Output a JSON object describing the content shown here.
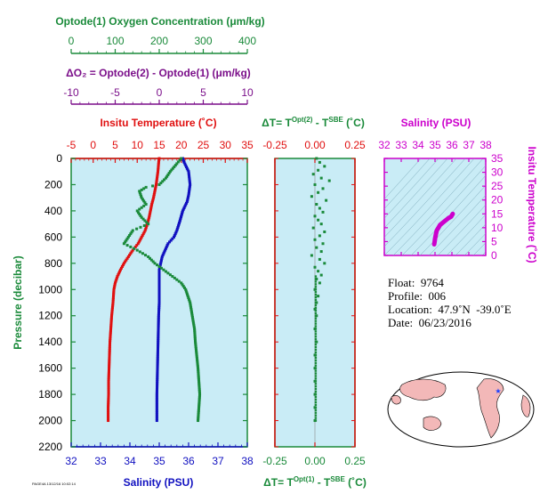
{
  "colors": {
    "oxygen": "#1a8a3a",
    "delta_o2": "#7b0f8a",
    "temperature": "#e01010",
    "salinity": "#1010c0",
    "pressure_axis": "#1a8a3a",
    "delta_t": "#e01010",
    "ts_axis": "#cc00cc",
    "panel_bg": "#c9ecf6",
    "land": "#f3b8b8"
  },
  "labels": {
    "oxygen_title": "Optode(1) Oxygen Concentration (μm/kg)",
    "delta_o2_title": "ΔO₂ = Optode(2) - Optode(1)   (μm/kg)",
    "temp_title": "Insitu Temperature (˚C)",
    "salinity_title": "Salinity (PSU)",
    "pressure_title": "Pressure (decibar)",
    "delta_t_top_title": "ΔT= T^Opt(2) - T^SBE (˚C)",
    "delta_t_bottom_title": "ΔT= T^Opt(1) - T^SBE (˚C)",
    "ts_salinity_title": "Salinity (PSU)",
    "ts_temp_title": "Insitu Temperature (˚C)",
    "tiny_footer": "PAGE4A 13/12/16 10:02:14"
  },
  "info": {
    "float": "Float:  9764",
    "profile": "Profile:  006",
    "location": "Location:  47.9˚N  -39.0˚E",
    "date": "Date:  06/23/2016"
  },
  "chart_data": [
    {
      "type": "scatter",
      "name": "main-profile",
      "ylabel": "Pressure (decibar)",
      "ylim": [
        2200,
        0
      ],
      "yticks": [
        0,
        200,
        400,
        600,
        800,
        1000,
        1200,
        1400,
        1600,
        1800,
        2000,
        2200
      ],
      "axes": {
        "oxygen": {
          "title": "Optode(1) Oxygen Concentration (μm/kg)",
          "lim": [
            0,
            400
          ],
          "ticks": [
            0,
            100,
            200,
            300,
            400
          ]
        },
        "delta_o2": {
          "title": "ΔO₂ = Optode(2) - Optode(1)   (μm/kg)",
          "lim": [
            -10,
            10
          ],
          "ticks": [
            -10,
            -5,
            0,
            5,
            10
          ]
        },
        "temperature": {
          "title": "Insitu Temperature (˚C)",
          "lim": [
            -5,
            35
          ],
          "ticks": [
            -5,
            0,
            5,
            10,
            15,
            20,
            25,
            30,
            35
          ]
        },
        "salinity": {
          "title": "Salinity (PSU)",
          "lim": [
            32,
            38
          ],
          "ticks": [
            32,
            33,
            34,
            35,
            36,
            37,
            38
          ]
        }
      },
      "series": [
        {
          "name": "temperature",
          "axis": "temperature",
          "points": [
            [
              15.0,
              0
            ],
            [
              14.9,
              20
            ],
            [
              14.8,
              60
            ],
            [
              14.7,
              100
            ],
            [
              14.5,
              150
            ],
            [
              14.3,
              200
            ],
            [
              14.0,
              250
            ],
            [
              13.7,
              300
            ],
            [
              13.3,
              350
            ],
            [
              13.0,
              400
            ],
            [
              12.7,
              450
            ],
            [
              12.3,
              500
            ],
            [
              11.8,
              550
            ],
            [
              11.0,
              600
            ],
            [
              10.2,
              650
            ],
            [
              9.0,
              700
            ],
            [
              8.0,
              750
            ],
            [
              7.0,
              800
            ],
            [
              6.2,
              850
            ],
            [
              5.5,
              900
            ],
            [
              5.0,
              950
            ],
            [
              4.7,
              1000
            ],
            [
              4.5,
              1100
            ],
            [
              4.2,
              1200
            ],
            [
              4.0,
              1300
            ],
            [
              3.8,
              1400
            ],
            [
              3.7,
              1500
            ],
            [
              3.6,
              1600
            ],
            [
              3.5,
              1700
            ],
            [
              3.5,
              1800
            ],
            [
              3.4,
              1900
            ],
            [
              3.4,
              2000
            ]
          ]
        },
        {
          "name": "salinity",
          "axis": "salinity",
          "points": [
            [
              35.8,
              0
            ],
            [
              35.85,
              30
            ],
            [
              36.0,
              100
            ],
            [
              36.05,
              200
            ],
            [
              36.0,
              280
            ],
            [
              35.95,
              330
            ],
            [
              35.8,
              400
            ],
            [
              35.7,
              480
            ],
            [
              35.6,
              550
            ],
            [
              35.5,
              600
            ],
            [
              35.3,
              650
            ],
            [
              35.2,
              700
            ],
            [
              35.1,
              750
            ],
            [
              35.05,
              800
            ],
            [
              35.0,
              850
            ],
            [
              35.0,
              900
            ],
            [
              35.0,
              1000
            ],
            [
              35.0,
              1100
            ],
            [
              34.98,
              1200
            ],
            [
              34.97,
              1300
            ],
            [
              34.96,
              1400
            ],
            [
              34.95,
              1500
            ],
            [
              34.94,
              1600
            ],
            [
              34.93,
              1700
            ],
            [
              34.92,
              1800
            ],
            [
              34.92,
              1900
            ],
            [
              34.92,
              2000
            ]
          ]
        },
        {
          "name": "oxygen",
          "axis": "oxygen",
          "points": [
            [
              250,
              0
            ],
            [
              240,
              40
            ],
            [
              225,
              100
            ],
            [
              215,
              150
            ],
            [
              200,
              200
            ],
            [
              170,
              220
            ],
            [
              155,
              250
            ],
            [
              160,
              300
            ],
            [
              170,
              350
            ],
            [
              150,
              400
            ],
            [
              160,
              450
            ],
            [
              175,
              500
            ],
            [
              140,
              550
            ],
            [
              130,
              600
            ],
            [
              120,
              650
            ],
            [
              150,
              700
            ],
            [
              175,
              750
            ],
            [
              190,
              800
            ],
            [
              210,
              850
            ],
            [
              230,
              900
            ],
            [
              250,
              950
            ],
            [
              260,
              1000
            ],
            [
              270,
              1100
            ],
            [
              275,
              1200
            ],
            [
              280,
              1300
            ],
            [
              282,
              1400
            ],
            [
              285,
              1500
            ],
            [
              288,
              1600
            ],
            [
              290,
              1700
            ],
            [
              292,
              1800
            ],
            [
              290,
              1900
            ],
            [
              288,
              2000
            ]
          ]
        }
      ]
    },
    {
      "type": "scatter",
      "name": "delta-t",
      "xlabel": "ΔT= T^Opt(1) - T^SBE (˚C)",
      "xlim": [
        -0.25,
        0.25
      ],
      "xticks": [
        -0.25,
        0.0,
        0.25
      ],
      "ylim": [
        2200,
        0
      ],
      "points": [
        [
          0.01,
          0
        ],
        [
          0.03,
          30
        ],
        [
          0.06,
          60
        ],
        [
          0.02,
          90
        ],
        [
          -0.01,
          120
        ],
        [
          0.04,
          150
        ],
        [
          0.09,
          170
        ],
        [
          0.0,
          200
        ],
        [
          0.05,
          230
        ],
        [
          0.02,
          260
        ],
        [
          -0.02,
          290
        ],
        [
          0.07,
          320
        ],
        [
          0.01,
          350
        ],
        [
          0.03,
          380
        ],
        [
          0.05,
          410
        ],
        [
          0.0,
          440
        ],
        [
          0.02,
          470
        ],
        [
          0.04,
          500
        ],
        [
          -0.01,
          530
        ],
        [
          0.06,
          560
        ],
        [
          0.03,
          590
        ],
        [
          0.0,
          620
        ],
        [
          0.05,
          650
        ],
        [
          0.01,
          680
        ],
        [
          0.04,
          710
        ],
        [
          -0.02,
          740
        ],
        [
          0.03,
          770
        ],
        [
          0.06,
          800
        ],
        [
          0.0,
          830
        ],
        [
          0.02,
          860
        ],
        [
          0.04,
          890
        ],
        [
          0.01,
          920
        ],
        [
          0.03,
          950
        ],
        [
          0.0,
          1000
        ],
        [
          0.02,
          1050
        ],
        [
          0.01,
          1100
        ],
        [
          0.0,
          1150
        ],
        [
          0.01,
          1200
        ],
        [
          0.0,
          1300
        ],
        [
          0.01,
          1400
        ],
        [
          0.0,
          1500
        ],
        [
          0.0,
          1600
        ],
        [
          0.0,
          1700
        ],
        [
          0.0,
          1800
        ],
        [
          0.0,
          1900
        ],
        [
          0.0,
          2000
        ]
      ]
    },
    {
      "type": "line",
      "name": "t-s-diagram",
      "xlabel": "Salinity (PSU)",
      "ylabel": "Insitu Temperature (˚C)",
      "xlim": [
        32,
        38
      ],
      "ylim": [
        0,
        35
      ],
      "xticks": [
        32,
        33,
        34,
        35,
        36,
        37,
        38
      ],
      "yticks": [
        0,
        5,
        10,
        15,
        20,
        25,
        30,
        35
      ],
      "points": [
        [
          34.95,
          4.0
        ],
        [
          34.98,
          5.0
        ],
        [
          35.0,
          6.0
        ],
        [
          35.05,
          7.5
        ],
        [
          35.1,
          9.0
        ],
        [
          35.2,
          10.0
        ],
        [
          35.3,
          11.0
        ],
        [
          35.5,
          12.0
        ],
        [
          35.7,
          13.0
        ],
        [
          35.8,
          13.5
        ],
        [
          35.95,
          14.0
        ],
        [
          36.0,
          14.5
        ],
        [
          36.05,
          15.0
        ]
      ]
    }
  ]
}
